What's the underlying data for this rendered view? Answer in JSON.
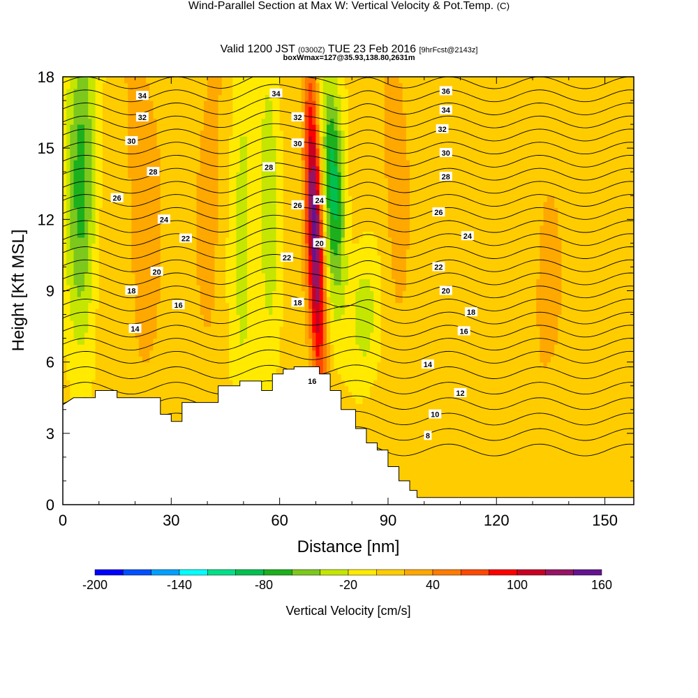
{
  "title": {
    "main": "Wind-Parallel Section at Max W: Vertical Velocity & Pot.Temp.",
    "main_suffix": "(C)",
    "valid_a": "Valid 1200 JST",
    "valid_b": "(0300Z)",
    "valid_c": "TUE 23 Feb 2016",
    "valid_d": "[9hrFcst@2143z]",
    "box": "boxWmax=127@35.93,138.80,2631m"
  },
  "chart_data": {
    "type": "heatmap",
    "title": "Wind-Parallel Section at Max W: Vertical Velocity & Pot.Temp.",
    "xlabel": "Distance [nm]",
    "ylabel": "Height [Kft MSL]",
    "xlim": [
      0,
      158
    ],
    "ylim": [
      0,
      18
    ],
    "x_ticks": [
      "0",
      "30",
      "60",
      "90",
      "120",
      "150"
    ],
    "x_tick_values": [
      0,
      30,
      60,
      90,
      120,
      150
    ],
    "y_ticks": [
      "0",
      "3",
      "6",
      "9",
      "12",
      "15",
      "18"
    ],
    "y_tick_values": [
      0,
      3,
      6,
      9,
      12,
      15,
      18
    ],
    "colorbar": {
      "label": "Vertical Velocity [cm/s]",
      "tick_labels": [
        "-200",
        "-140",
        "-80",
        "-20",
        "40",
        "100",
        "160"
      ],
      "tick_values": [
        -200,
        -140,
        -80,
        -20,
        40,
        100,
        160
      ],
      "bins": [
        -200,
        -180,
        -160,
        -140,
        -120,
        -100,
        -80,
        -60,
        -40,
        -20,
        0,
        20,
        40,
        60,
        80,
        100,
        120,
        140,
        160
      ],
      "colors": [
        "#0000ff",
        "#0050ff",
        "#00a0ff",
        "#00ffff",
        "#00e088",
        "#00c050",
        "#1cb01c",
        "#7cc81c",
        "#c4e600",
        "#ffea00",
        "#ffcc00",
        "#ffa800",
        "#ff7c00",
        "#ff4800",
        "#ff0000",
        "#c80024",
        "#961464",
        "#641490"
      ]
    },
    "terrain": [
      [
        0,
        4.2
      ],
      [
        3,
        4.5
      ],
      [
        9,
        4.5
      ],
      [
        9,
        4.8
      ],
      [
        15,
        4.8
      ],
      [
        15,
        4.5
      ],
      [
        27,
        4.5
      ],
      [
        27,
        3.8
      ],
      [
        30,
        3.8
      ],
      [
        30,
        3.5
      ],
      [
        33,
        3.5
      ],
      [
        33,
        4.3
      ],
      [
        43,
        4.3
      ],
      [
        43,
        5.0
      ],
      [
        49,
        5.0
      ],
      [
        49,
        5.2
      ],
      [
        55,
        5.2
      ],
      [
        55,
        4.8
      ],
      [
        58,
        4.8
      ],
      [
        58,
        5.5
      ],
      [
        61,
        5.5
      ],
      [
        61,
        5.7
      ],
      [
        64,
        5.7
      ],
      [
        64,
        5.8
      ],
      [
        71,
        5.8
      ],
      [
        71,
        5.5
      ],
      [
        74,
        5.5
      ],
      [
        74,
        4.8
      ],
      [
        77,
        4.8
      ],
      [
        77,
        4.0
      ],
      [
        81,
        4.0
      ],
      [
        81,
        3.2
      ],
      [
        84,
        3.2
      ],
      [
        84,
        2.6
      ],
      [
        87,
        2.6
      ],
      [
        87,
        2.3
      ],
      [
        90,
        2.3
      ],
      [
        90,
        1.6
      ],
      [
        93,
        1.6
      ],
      [
        93,
        1.0
      ],
      [
        96,
        1.0
      ],
      [
        96,
        0.6
      ],
      [
        98,
        0.6
      ],
      [
        98,
        0.3
      ],
      [
        158,
        0.3
      ]
    ],
    "w_features": [
      {
        "x": 71,
        "y": 11.0,
        "value": 150,
        "label": "max updraft"
      },
      {
        "x": 79,
        "y": 13.0,
        "value": -80,
        "label": "downdraft"
      },
      {
        "x": 5,
        "y": 15.0,
        "value": -70,
        "label": "downdraft"
      },
      {
        "x": 83,
        "y": 8.0,
        "value": -40,
        "label": "downdraft"
      }
    ],
    "contours_label": "Pot.Temp.",
    "contour_labels": [
      {
        "text": "34",
        "x": 22,
        "y": 17.2
      },
      {
        "text": "32",
        "x": 22,
        "y": 16.3
      },
      {
        "text": "30",
        "x": 19,
        "y": 15.3
      },
      {
        "text": "28",
        "x": 25,
        "y": 14.0
      },
      {
        "text": "26",
        "x": 15,
        "y": 12.9
      },
      {
        "text": "24",
        "x": 28,
        "y": 12.0
      },
      {
        "text": "22",
        "x": 34,
        "y": 11.2
      },
      {
        "text": "20",
        "x": 26,
        "y": 9.8
      },
      {
        "text": "18",
        "x": 19,
        "y": 9.0
      },
      {
        "text": "16",
        "x": 32,
        "y": 8.4
      },
      {
        "text": "14",
        "x": 20,
        "y": 7.4
      },
      {
        "text": "34",
        "x": 59,
        "y": 17.3
      },
      {
        "text": "32",
        "x": 65,
        "y": 16.3
      },
      {
        "text": "30",
        "x": 65,
        "y": 15.2
      },
      {
        "text": "28",
        "x": 57,
        "y": 14.2
      },
      {
        "text": "26",
        "x": 65,
        "y": 12.6
      },
      {
        "text": "24",
        "x": 71,
        "y": 12.8
      },
      {
        "text": "22",
        "x": 62,
        "y": 10.4
      },
      {
        "text": "20",
        "x": 71,
        "y": 11.0
      },
      {
        "text": "18",
        "x": 65,
        "y": 8.5
      },
      {
        "text": "16",
        "x": 69,
        "y": 5.2
      },
      {
        "text": "36",
        "x": 106,
        "y": 17.4
      },
      {
        "text": "34",
        "x": 106,
        "y": 16.6
      },
      {
        "text": "32",
        "x": 105,
        "y": 15.8
      },
      {
        "text": "30",
        "x": 106,
        "y": 14.8
      },
      {
        "text": "28",
        "x": 106,
        "y": 13.8
      },
      {
        "text": "26",
        "x": 104,
        "y": 12.3
      },
      {
        "text": "24",
        "x": 112,
        "y": 11.3
      },
      {
        "text": "22",
        "x": 104,
        "y": 10.0
      },
      {
        "text": "20",
        "x": 106,
        "y": 9.0
      },
      {
        "text": "18",
        "x": 113,
        "y": 8.1
      },
      {
        "text": "16",
        "x": 111,
        "y": 7.3
      },
      {
        "text": "14",
        "x": 101,
        "y": 5.9
      },
      {
        "text": "12",
        "x": 110,
        "y": 4.7
      },
      {
        "text": "10",
        "x": 103,
        "y": 3.8
      },
      {
        "text": "8",
        "x": 101,
        "y": 2.9
      }
    ]
  }
}
